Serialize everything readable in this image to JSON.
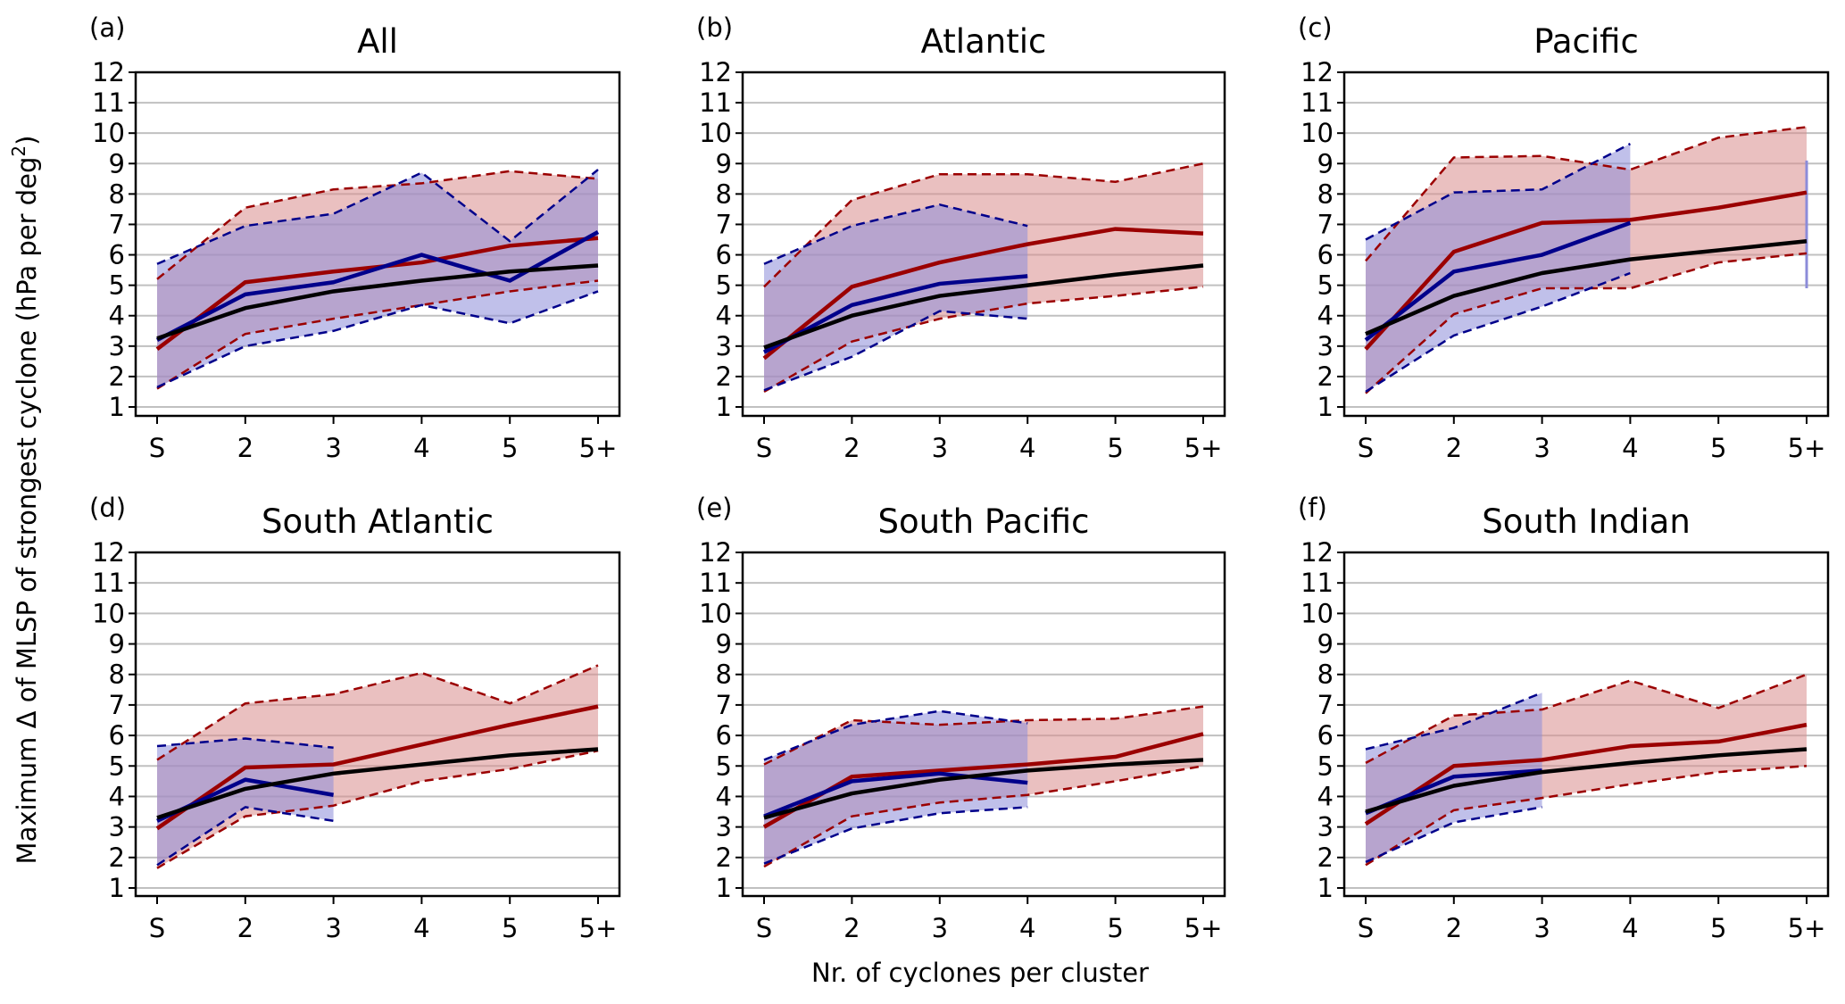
{
  "chart_data": {
    "type": "line",
    "ylabel": "Maximum Δ of MLSP of strongest cyclone (hPa per deg²)",
    "xlabel": "Nr. of cyclones per cluster",
    "categories": [
      "S",
      "2",
      "3",
      "4",
      "5",
      "5+"
    ],
    "yticks": [
      "1",
      "2",
      "3",
      "4",
      "5",
      "6",
      "7",
      "8",
      "9",
      "10",
      "11",
      "12"
    ],
    "ylim": [
      0.75,
      12
    ],
    "grid": "horizontal",
    "colors": {
      "red": "#9b0000",
      "blue": "#00008b",
      "black": "#000000",
      "red_fill": "#e8bcbc",
      "blue_fill": "#c8c8ea",
      "overlap_fill": "#b9a1bb",
      "grid": "#c0c0c0"
    },
    "panels": [
      {
        "label": "(a)",
        "title": "All",
        "black": [
          3.25,
          4.25,
          4.8,
          5.15,
          5.45,
          5.65
        ],
        "red": {
          "mean": [
            2.9,
            5.1,
            5.45,
            5.75,
            6.3,
            6.55
          ],
          "upper": [
            5.2,
            7.55,
            8.15,
            8.35,
            8.75,
            8.5
          ],
          "lower": [
            1.6,
            3.4,
            3.9,
            4.35,
            4.8,
            5.15
          ]
        },
        "blue": {
          "mean": [
            3.2,
            4.7,
            5.1,
            6.0,
            5.15,
            6.75
          ],
          "upper": [
            5.7,
            6.95,
            7.35,
            8.7,
            6.45,
            8.8
          ],
          "lower": [
            1.65,
            3.0,
            3.5,
            4.35,
            3.75,
            4.8
          ]
        }
      },
      {
        "label": "(b)",
        "title": "Atlantic",
        "black": [
          2.95,
          4.0,
          4.65,
          5.0,
          5.35,
          5.65
        ],
        "red": {
          "mean": [
            2.6,
            4.95,
            5.75,
            6.35,
            6.85,
            6.7
          ],
          "upper": [
            4.95,
            7.8,
            8.65,
            8.65,
            8.4,
            9.0
          ],
          "lower": [
            1.5,
            3.15,
            3.9,
            4.4,
            4.65,
            4.95
          ]
        },
        "blue": {
          "mean": [
            2.8,
            4.35,
            5.05,
            5.3
          ],
          "upper": [
            5.7,
            6.95,
            7.65,
            6.95
          ],
          "lower": [
            1.55,
            2.65,
            4.15,
            3.9
          ]
        }
      },
      {
        "label": "(c)",
        "title": "Pacific",
        "black": [
          3.4,
          4.65,
          5.4,
          5.85,
          6.15,
          6.45
        ],
        "red": {
          "mean": [
            2.9,
            6.1,
            7.05,
            7.15,
            7.55,
            8.05
          ],
          "upper": [
            5.8,
            9.2,
            9.25,
            8.8,
            9.85,
            10.2
          ],
          "lower": [
            1.45,
            4.05,
            4.9,
            4.9,
            5.75,
            6.05
          ]
        },
        "blue": {
          "mean": [
            3.2,
            5.45,
            6.0,
            7.05,
            null,
            7.0
          ],
          "upper": [
            6.5,
            8.05,
            8.15,
            9.65,
            null,
            9.1
          ],
          "lower": [
            1.5,
            3.35,
            4.3,
            5.4,
            null,
            4.9
          ]
        }
      },
      {
        "label": "(d)",
        "title": "South Atlantic",
        "black": [
          3.3,
          4.25,
          4.75,
          5.05,
          5.35,
          5.55
        ],
        "red": {
          "mean": [
            2.95,
            4.95,
            5.05,
            5.7,
            6.35,
            6.95
          ],
          "upper": [
            5.2,
            7.05,
            7.35,
            8.05,
            7.05,
            8.3
          ],
          "lower": [
            1.65,
            3.35,
            3.7,
            4.5,
            4.9,
            5.5
          ]
        },
        "blue": {
          "mean": [
            3.2,
            4.55,
            4.05
          ],
          "upper": [
            5.65,
            5.9,
            5.6
          ],
          "lower": [
            1.75,
            3.65,
            3.2
          ]
        }
      },
      {
        "label": "(e)",
        "title": "South Pacific",
        "black": [
          3.3,
          4.1,
          4.55,
          4.85,
          5.05,
          5.2
        ],
        "red": {
          "mean": [
            3.0,
            4.65,
            4.85,
            5.05,
            5.3,
            6.05
          ],
          "upper": [
            5.05,
            6.5,
            6.35,
            6.5,
            6.55,
            6.95
          ],
          "lower": [
            1.7,
            3.35,
            3.8,
            4.05,
            4.5,
            5.0
          ]
        },
        "blue": {
          "mean": [
            3.35,
            4.5,
            4.75,
            4.45
          ],
          "upper": [
            5.2,
            6.35,
            6.8,
            6.4
          ],
          "lower": [
            1.8,
            2.95,
            3.45,
            3.65
          ]
        }
      },
      {
        "label": "(f)",
        "title": "South Indian",
        "black": [
          3.5,
          4.35,
          4.8,
          5.1,
          5.35,
          5.55
        ],
        "red": {
          "mean": [
            3.1,
            5.0,
            5.2,
            5.65,
            5.8,
            6.35
          ],
          "upper": [
            5.1,
            6.65,
            6.85,
            7.8,
            6.9,
            8.0
          ],
          "lower": [
            1.75,
            3.55,
            3.95,
            4.4,
            4.8,
            5.0
          ]
        },
        "blue": {
          "mean": [
            3.45,
            4.65,
            4.85
          ],
          "upper": [
            5.55,
            6.25,
            7.4
          ],
          "lower": [
            1.85,
            3.15,
            3.65
          ]
        }
      }
    ]
  }
}
